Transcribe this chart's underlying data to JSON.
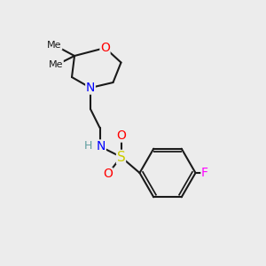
{
  "bg_color": "#ececec",
  "bond_color": "#1a1a1a",
  "bond_width": 1.5,
  "atom_colors": {
    "O": "#ff0000",
    "N": "#0000ff",
    "S": "#cccc00",
    "F": "#ff00ff",
    "H": "#5f9ea0",
    "C": "#1a1a1a"
  },
  "font_size": 9,
  "fig_size": [
    3.0,
    3.0
  ],
  "dpi": 100
}
